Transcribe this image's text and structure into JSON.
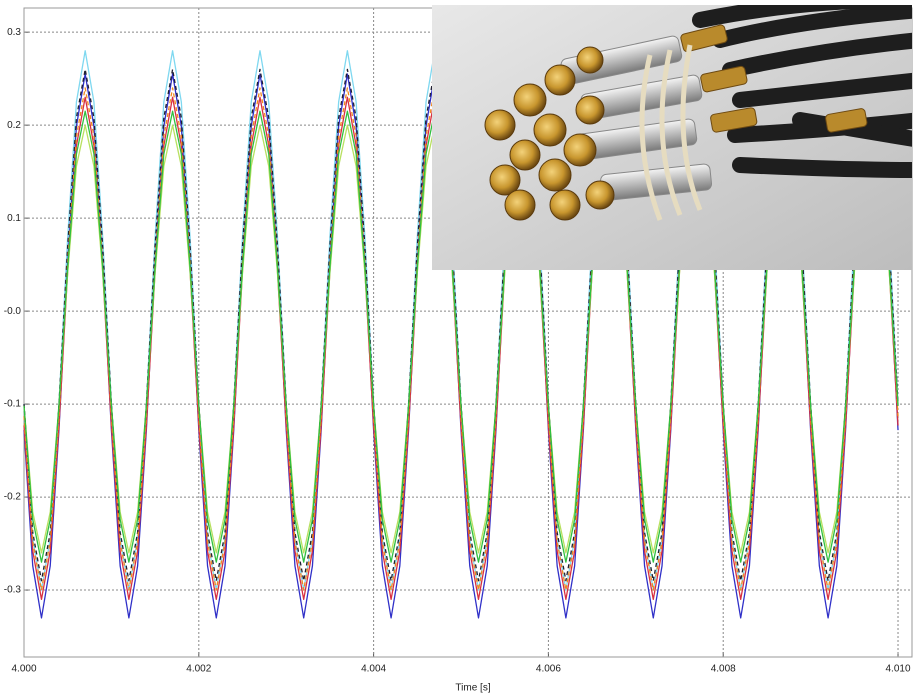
{
  "chart_data": {
    "type": "line",
    "x_label": "Time [s]",
    "x": [
      4,
      4.0001,
      4.0002,
      4.0003,
      4.0004,
      4.0005,
      4.0006,
      4.0007,
      4.0008,
      4.0009,
      4.001,
      4.0011,
      4.0012,
      4.0013,
      4.0014,
      4.0015,
      4.0016,
      4.0017,
      4.0018,
      4.0019,
      4.002,
      4.0021,
      4.0022,
      4.0023,
      4.0024,
      4.0025,
      4.0026,
      4.0027,
      4.0028,
      4.0029,
      4.003,
      4.0031,
      4.0032,
      4.0033,
      4.0034,
      4.0035,
      4.0036,
      4.0037,
      4.0038,
      4.0039,
      4.004,
      4.0041,
      4.0042,
      4.0043,
      4.0044,
      4.0045,
      4.0046,
      4.0047,
      4.0048,
      4.0049,
      4.005,
      4.0051,
      4.0052,
      4.0053,
      4.0054,
      4.0055,
      4.0056,
      4.0057,
      4.0058,
      4.0059,
      4.006,
      4.0061,
      4.0062,
      4.0063,
      4.0064,
      4.0065,
      4.0066,
      4.0067,
      4.0068,
      4.0069,
      4.007,
      4.0071,
      4.0072,
      4.0073,
      4.0074,
      4.0075,
      4.0076,
      4.0077,
      4.0078,
      4.0079,
      4.008,
      4.0081,
      4.0082,
      4.0083,
      4.0084,
      4.0085,
      4.0086,
      4.0087,
      4.0088,
      4.0089,
      4.009,
      4.0091,
      4.0092,
      4.0093,
      4.0094,
      4.0095,
      4.0096,
      4.0097,
      4.0098,
      4.0099,
      4.01
    ],
    "series": [
      {
        "color": "#7fd8f0",
        "dashed": false,
        "values": [
          -0.1,
          -0.245,
          -0.3,
          -0.245,
          -0.1,
          0.08,
          0.225,
          0.28,
          0.225,
          0.08,
          -0.1,
          -0.245,
          -0.3,
          -0.245,
          -0.1,
          0.08,
          0.225,
          0.28,
          0.225,
          0.08,
          -0.1,
          -0.245,
          -0.3,
          -0.245,
          -0.1,
          0.08,
          0.225,
          0.28,
          0.225,
          0.08,
          -0.1,
          -0.245,
          -0.3,
          -0.245,
          -0.1,
          0.08,
          0.225,
          0.28,
          0.225,
          0.08,
          -0.1,
          -0.245,
          -0.3,
          -0.245,
          -0.1,
          0.08,
          0.225,
          0.28,
          0.225,
          0.08,
          -0.1,
          -0.245,
          -0.3,
          -0.245,
          -0.1,
          0.08,
          0.225,
          0.28,
          0.225,
          0.08,
          -0.1,
          -0.245,
          -0.3,
          -0.245,
          -0.1,
          0.08,
          0.225,
          0.28,
          0.225,
          0.08,
          -0.1,
          -0.245,
          -0.3,
          -0.245,
          -0.1,
          0.08,
          0.225,
          0.28,
          0.225,
          0.08,
          -0.1,
          -0.245,
          -0.3,
          -0.245,
          -0.1,
          0.08,
          0.225,
          0.28,
          0.225,
          0.08,
          -0.1,
          -0.245,
          -0.3,
          -0.245,
          -0.1,
          0.08,
          0.225,
          0.28,
          0.225,
          0.08,
          -0.1
        ]
      },
      {
        "color": "#3030c8",
        "dashed": false,
        "values": [
          -0.128,
          -0.274,
          -0.33,
          -0.274,
          -0.128,
          0.053,
          0.199,
          0.255,
          0.199,
          0.053,
          -0.128,
          -0.274,
          -0.33,
          -0.274,
          -0.128,
          0.053,
          0.199,
          0.255,
          0.199,
          0.053,
          -0.128,
          -0.274,
          -0.33,
          -0.274,
          -0.128,
          0.053,
          0.199,
          0.255,
          0.199,
          0.053,
          -0.128,
          -0.274,
          -0.33,
          -0.274,
          -0.128,
          0.053,
          0.199,
          0.255,
          0.199,
          0.053,
          -0.128,
          -0.274,
          -0.33,
          -0.274,
          -0.128,
          0.053,
          0.199,
          0.255,
          0.199,
          0.053,
          -0.128,
          -0.274,
          -0.33,
          -0.274,
          -0.128,
          0.053,
          0.199,
          0.255,
          0.199,
          0.053,
          -0.128,
          -0.274,
          -0.33,
          -0.274,
          -0.128,
          0.053,
          0.199,
          0.255,
          0.199,
          0.053,
          -0.128,
          -0.274,
          -0.33,
          -0.274,
          -0.128,
          0.053,
          0.199,
          0.255,
          0.199,
          0.053,
          -0.128,
          -0.274,
          -0.33,
          -0.274,
          -0.128,
          0.053,
          0.199,
          0.255,
          0.199,
          0.053,
          -0.128,
          -0.274,
          -0.33,
          -0.274,
          -0.128,
          0.053,
          0.199,
          0.255,
          0.199,
          0.053,
          -0.128
        ]
      },
      {
        "color": "#d83040",
        "dashed": false,
        "values": [
          -0.123,
          -0.258,
          -0.31,
          -0.258,
          -0.123,
          0.043,
          0.178,
          0.23,
          0.178,
          0.043,
          -0.123,
          -0.258,
          -0.31,
          -0.258,
          -0.123,
          0.043,
          0.178,
          0.23,
          0.178,
          0.043,
          -0.123,
          -0.258,
          -0.31,
          -0.258,
          -0.123,
          0.043,
          0.178,
          0.23,
          0.178,
          0.043,
          -0.123,
          -0.258,
          -0.31,
          -0.258,
          -0.123,
          0.043,
          0.178,
          0.23,
          0.178,
          0.043,
          -0.123,
          -0.258,
          -0.31,
          -0.258,
          -0.123,
          0.043,
          0.178,
          0.23,
          0.178,
          0.043,
          -0.123,
          -0.258,
          -0.31,
          -0.258,
          -0.123,
          0.043,
          0.178,
          0.23,
          0.178,
          0.043,
          -0.123,
          -0.258,
          -0.31,
          -0.258,
          -0.123,
          0.043,
          0.178,
          0.23,
          0.178,
          0.043,
          -0.123,
          -0.258,
          -0.31,
          -0.258,
          -0.123,
          0.043,
          0.178,
          0.23,
          0.178,
          0.043,
          -0.123,
          -0.258,
          -0.31,
          -0.258,
          -0.123,
          0.043,
          0.178,
          0.23,
          0.178,
          0.043,
          -0.123,
          -0.258,
          -0.31,
          -0.258,
          -0.123,
          0.043,
          0.178,
          0.23,
          0.178,
          0.043,
          -0.123
        ]
      },
      {
        "color": "#b8e060",
        "dashed": false,
        "values": [
          -0.101,
          -0.216,
          -0.26,
          -0.216,
          -0.101,
          0.041,
          0.156,
          0.2,
          0.156,
          0.041,
          -0.101,
          -0.216,
          -0.26,
          -0.216,
          -0.101,
          0.041,
          0.156,
          0.2,
          0.156,
          0.041,
          -0.101,
          -0.216,
          -0.26,
          -0.216,
          -0.101,
          0.041,
          0.156,
          0.2,
          0.156,
          0.041,
          -0.101,
          -0.216,
          -0.26,
          -0.216,
          -0.101,
          0.041,
          0.156,
          0.2,
          0.156,
          0.041,
          -0.101,
          -0.216,
          -0.26,
          -0.216,
          -0.101,
          0.041,
          0.156,
          0.2,
          0.156,
          0.041,
          -0.101,
          -0.216,
          -0.26,
          -0.216,
          -0.101,
          0.041,
          0.156,
          0.2,
          0.156,
          0.041,
          -0.101,
          -0.216,
          -0.26,
          -0.216,
          -0.101,
          0.041,
          0.156,
          0.2,
          0.156,
          0.041,
          -0.101,
          -0.216,
          -0.26,
          -0.216,
          -0.101,
          0.041,
          0.156,
          0.2,
          0.156,
          0.041,
          -0.101,
          -0.216,
          -0.26,
          -0.216,
          -0.101,
          0.041,
          0.156,
          0.2,
          0.156,
          0.041,
          -0.101,
          -0.216,
          -0.26,
          -0.216,
          -0.101,
          0.041,
          0.156,
          0.2,
          0.156,
          0.041,
          -0.101
        ]
      },
      {
        "color": "#202030",
        "dashed": true,
        "values": [
          -0.1,
          -0.238,
          -0.29,
          -0.238,
          -0.1,
          0.07,
          0.208,
          0.26,
          0.208,
          0.07,
          -0.1,
          -0.238,
          -0.29,
          -0.238,
          -0.1,
          0.07,
          0.208,
          0.26,
          0.208,
          0.07,
          -0.1,
          -0.238,
          -0.29,
          -0.238,
          -0.1,
          0.07,
          0.208,
          0.26,
          0.208,
          0.07,
          -0.1,
          -0.238,
          -0.29,
          -0.238,
          -0.1,
          0.07,
          0.208,
          0.26,
          0.208,
          0.07,
          -0.1,
          -0.238,
          -0.29,
          -0.238,
          -0.1,
          0.07,
          0.208,
          0.26,
          0.208,
          0.07,
          -0.1,
          -0.238,
          -0.29,
          -0.238,
          -0.1,
          0.07,
          0.208,
          0.26,
          0.208,
          0.07,
          -0.1,
          -0.238,
          -0.29,
          -0.238,
          -0.1,
          0.07,
          0.208,
          0.26,
          0.208,
          0.07,
          -0.1,
          -0.238,
          -0.29,
          -0.238,
          -0.1,
          0.07,
          0.208,
          0.26,
          0.208,
          0.07,
          -0.1,
          -0.238,
          -0.29,
          -0.238,
          -0.1,
          0.07,
          0.208,
          0.26,
          0.208,
          0.07,
          -0.1,
          -0.238,
          -0.29,
          -0.238,
          -0.1,
          0.07,
          0.208,
          0.26,
          0.208,
          0.07,
          -0.1
        ]
      },
      {
        "color": "#f08a20",
        "dashed": true,
        "values": [
          -0.113,
          -0.248,
          -0.3,
          -0.248,
          -0.113,
          0.053,
          0.188,
          0.24,
          0.188,
          0.053,
          -0.113,
          -0.248,
          -0.3,
          -0.248,
          -0.113,
          0.053,
          0.188,
          0.24,
          0.188,
          0.053,
          -0.113,
          -0.248,
          -0.3,
          -0.248,
          -0.113,
          0.053,
          0.188,
          0.24,
          0.188,
          0.053,
          -0.113,
          -0.248,
          -0.3,
          -0.248,
          -0.113,
          0.053,
          0.188,
          0.24,
          0.188,
          0.053,
          -0.113,
          -0.248,
          -0.3,
          -0.248,
          -0.113,
          0.053,
          0.188,
          0.24,
          0.188,
          0.053,
          -0.113,
          -0.248,
          -0.3,
          -0.248,
          -0.113,
          0.053,
          0.188,
          0.24,
          0.188,
          0.053,
          -0.113,
          -0.248,
          -0.3,
          -0.248,
          -0.113,
          0.053,
          0.188,
          0.24,
          0.188,
          0.053,
          -0.113,
          -0.248,
          -0.3,
          -0.248,
          -0.113,
          0.053,
          0.188,
          0.24,
          0.188,
          0.053,
          -0.113,
          -0.248,
          -0.3,
          -0.248,
          -0.113,
          0.053,
          0.188,
          0.24,
          0.188,
          0.053,
          -0.113,
          -0.248,
          -0.3,
          -0.248,
          -0.113,
          0.053,
          0.188,
          0.24,
          0.188,
          0.053,
          -0.113
        ]
      },
      {
        "color": "#30c040",
        "dashed": false,
        "values": [
          -0.102,
          -0.224,
          -0.27,
          -0.224,
          -0.102,
          0.047,
          0.169,
          0.215,
          0.169,
          0.047,
          -0.102,
          -0.224,
          -0.27,
          -0.224,
          -0.102,
          0.047,
          0.169,
          0.215,
          0.169,
          0.047,
          -0.102,
          -0.224,
          -0.27,
          -0.224,
          -0.102,
          0.047,
          0.169,
          0.215,
          0.169,
          0.047,
          -0.102,
          -0.224,
          -0.27,
          -0.224,
          -0.102,
          0.047,
          0.169,
          0.215,
          0.169,
          0.047,
          -0.102,
          -0.224,
          -0.27,
          -0.224,
          -0.102,
          0.047,
          0.169,
          0.215,
          0.169,
          0.047,
          -0.102,
          -0.224,
          -0.27,
          -0.224,
          -0.102,
          0.047,
          0.169,
          0.215,
          0.169,
          0.047,
          -0.102,
          -0.224,
          -0.27,
          -0.224,
          -0.102,
          0.047,
          0.169,
          0.215,
          0.169,
          0.047,
          -0.102,
          -0.224,
          -0.27,
          -0.224,
          -0.102,
          0.047,
          0.169,
          0.215,
          0.169,
          0.047,
          -0.102,
          -0.224,
          -0.27,
          -0.224,
          -0.102,
          0.047,
          0.169,
          0.215,
          0.169,
          0.047,
          -0.102,
          -0.224,
          -0.27,
          -0.224,
          -0.102,
          0.047,
          0.169,
          0.215,
          0.169,
          0.047,
          -0.102
        ]
      }
    ],
    "xlim": [
      4,
      4.01016
    ],
    "xticks": [
      {
        "value": 4,
        "label": "4.000"
      },
      4.002,
      4.004,
      4.006,
      4.008,
      {
        "value": 4.01,
        "label": "4.010"
      }
    ],
    "ylim": [
      -0.372,
      0.326
    ],
    "yticks": [
      0.3,
      0.2,
      0.1,
      {
        "value": 0,
        "label": "-0.0"
      },
      -0.1,
      -0.2,
      -0.3
    ],
    "grid": true
  }
}
